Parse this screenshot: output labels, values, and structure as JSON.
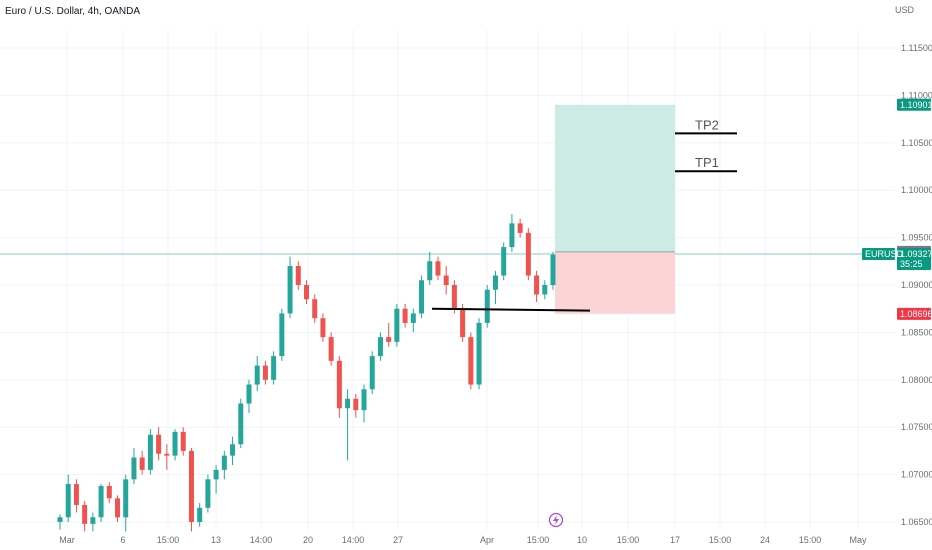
{
  "header": {
    "title": "Euro / U.S. Dollar, 4h, OANDA",
    "currency": "USD"
  },
  "colors": {
    "up": "#26a69a",
    "down": "#ef5350",
    "profit_zone": "#cdebe5",
    "loss_zone": "#fbd5d6",
    "grid": "#f0f3fa",
    "axis_text": "#6a6d78",
    "tag_green": "#089981",
    "tag_red": "#f23645",
    "tag_gray": "#787b86"
  },
  "chart_data": {
    "type": "candlestick",
    "symbol": "EURUSD",
    "timeframe": "4h",
    "ylim": [
      1.0645,
      1.1195
    ],
    "y_ticks": [
      "1.11500",
      "1.11000",
      "1.10500",
      "1.10000",
      "1.09500",
      "1.09000",
      "1.08500",
      "1.08000",
      "1.07500",
      "1.07000",
      "1.06500"
    ],
    "x_ticks": [
      "Mar",
      "6",
      "15:00",
      "13",
      "14:00",
      "20",
      "14:00",
      "27",
      "Apr",
      "15:00",
      "10",
      "15:00",
      "17",
      "15:00",
      "24",
      "15:00",
      "May"
    ],
    "candles": [
      [
        1.065,
        1.0658,
        1.0642,
        1.0655
      ],
      [
        1.0655,
        1.07,
        1.065,
        1.069
      ],
      [
        1.069,
        1.0695,
        1.066,
        1.0668
      ],
      [
        1.0668,
        1.0672,
        1.064,
        1.0648
      ],
      [
        1.0648,
        1.066,
        1.064,
        1.0655
      ],
      [
        1.0655,
        1.069,
        1.065,
        1.0688
      ],
      [
        1.0688,
        1.0692,
        1.067,
        1.0675
      ],
      [
        1.0675,
        1.0678,
        1.065,
        1.0655
      ],
      [
        1.0655,
        1.07,
        1.064,
        1.0695
      ],
      [
        1.0695,
        1.0728,
        1.069,
        1.0718
      ],
      [
        1.0718,
        1.0725,
        1.07,
        1.0705
      ],
      [
        1.0705,
        1.0748,
        1.07,
        1.0742
      ],
      [
        1.0742,
        1.075,
        1.0715,
        1.0722
      ],
      [
        1.0722,
        1.0732,
        1.0705,
        1.072
      ],
      [
        1.072,
        1.0748,
        1.0715,
        1.0745
      ],
      [
        1.0745,
        1.075,
        1.072,
        1.0725
      ],
      [
        1.0725,
        1.0728,
        1.064,
        1.065
      ],
      [
        1.065,
        1.067,
        1.0645,
        1.0665
      ],
      [
        1.0665,
        1.07,
        1.066,
        1.0695
      ],
      [
        1.0695,
        1.071,
        1.068,
        1.0705
      ],
      [
        1.0705,
        1.0725,
        1.0695,
        1.072
      ],
      [
        1.072,
        1.074,
        1.071,
        1.0732
      ],
      [
        1.0732,
        1.078,
        1.0728,
        1.0775
      ],
      [
        1.0775,
        1.08,
        1.0765,
        1.0795
      ],
      [
        1.0795,
        1.0825,
        1.0788,
        1.0815
      ],
      [
        1.0815,
        1.082,
        1.0795,
        1.08
      ],
      [
        1.08,
        1.083,
        1.0795,
        1.0825
      ],
      [
        1.0825,
        1.0875,
        1.082,
        1.087
      ],
      [
        1.087,
        1.093,
        1.0865,
        1.092
      ],
      [
        1.092,
        1.0925,
        1.0895,
        1.09
      ],
      [
        1.09,
        1.0905,
        1.088,
        1.0885
      ],
      [
        1.0885,
        1.089,
        1.086,
        1.0865
      ],
      [
        1.0865,
        1.087,
        1.084,
        1.0845
      ],
      [
        1.0845,
        1.085,
        1.0815,
        1.082
      ],
      [
        1.082,
        1.0825,
        1.076,
        1.077
      ],
      [
        1.077,
        1.079,
        1.0715,
        1.078
      ],
      [
        1.078,
        1.0785,
        1.076,
        1.0768
      ],
      [
        1.0768,
        1.0795,
        1.0755,
        1.079
      ],
      [
        1.079,
        1.083,
        1.0785,
        1.0825
      ],
      [
        1.0825,
        1.085,
        1.082,
        1.0845
      ],
      [
        1.0845,
        1.086,
        1.0835,
        1.084
      ],
      [
        1.084,
        1.088,
        1.0835,
        1.0875
      ],
      [
        1.0875,
        1.088,
        1.0855,
        1.086
      ],
      [
        1.086,
        1.0875,
        1.085,
        1.087
      ],
      [
        1.087,
        1.091,
        1.0865,
        1.0905
      ],
      [
        1.0905,
        1.0935,
        1.09,
        1.0925
      ],
      [
        1.0925,
        1.093,
        1.0905,
        1.091
      ],
      [
        1.091,
        1.092,
        1.089,
        1.09
      ],
      [
        1.09,
        1.0905,
        1.087,
        1.0875
      ],
      [
        1.0875,
        1.088,
        1.084,
        1.0845
      ],
      [
        1.0845,
        1.085,
        1.079,
        1.0795
      ],
      [
        1.0795,
        1.0865,
        1.079,
        1.086
      ],
      [
        1.086,
        1.09,
        1.0855,
        1.0895
      ],
      [
        1.0895,
        1.0915,
        1.088,
        1.091
      ],
      [
        1.091,
        1.0945,
        1.0905,
        1.094
      ],
      [
        1.094,
        1.0975,
        1.0935,
        1.0965
      ],
      [
        1.0965,
        1.097,
        1.095,
        1.0955
      ],
      [
        1.0955,
        1.096,
        1.0905,
        1.091
      ],
      [
        1.091,
        1.0915,
        1.0882,
        1.089
      ],
      [
        1.089,
        1.0905,
        1.0885,
        1.09
      ],
      [
        1.09,
        1.0935,
        1.0895,
        1.0932
      ]
    ],
    "current_price": "1.09327",
    "countdown": "35:25",
    "entry": "1.09350",
    "take_profit": "1.10901",
    "stop_loss": "1.08696",
    "targets": [
      {
        "label": "TP2",
        "price": 1.106
      },
      {
        "label": "TP1",
        "price": 1.102
      }
    ],
    "support_line": [
      1.0875,
      1.0873
    ]
  }
}
